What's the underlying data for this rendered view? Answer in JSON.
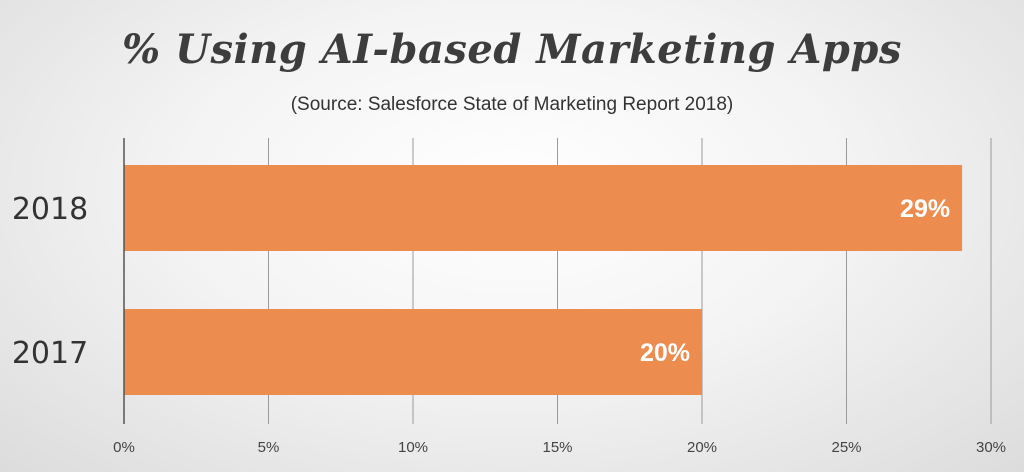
{
  "chart_data": {
    "type": "bar",
    "orientation": "horizontal",
    "title": "% Using AI-based Marketing Apps",
    "subtitle": "(Source: Salesforce State of Marketing Report 2018)",
    "categories": [
      "2018",
      "2017"
    ],
    "values": [
      29,
      20
    ],
    "value_labels": [
      "29%",
      "20%"
    ],
    "xlim": [
      0,
      30
    ],
    "x_ticks": [
      0,
      5,
      10,
      15,
      20,
      25,
      30
    ],
    "x_tick_labels": [
      "0%",
      "5%",
      "10%",
      "15%",
      "20%",
      "25%",
      "30%"
    ],
    "grid": true,
    "legend": "none",
    "xlabel": "",
    "ylabel": ""
  },
  "colors": {
    "bar": "#EC8C4F",
    "grid": "#9a9a9a",
    "axis": "#555555"
  }
}
